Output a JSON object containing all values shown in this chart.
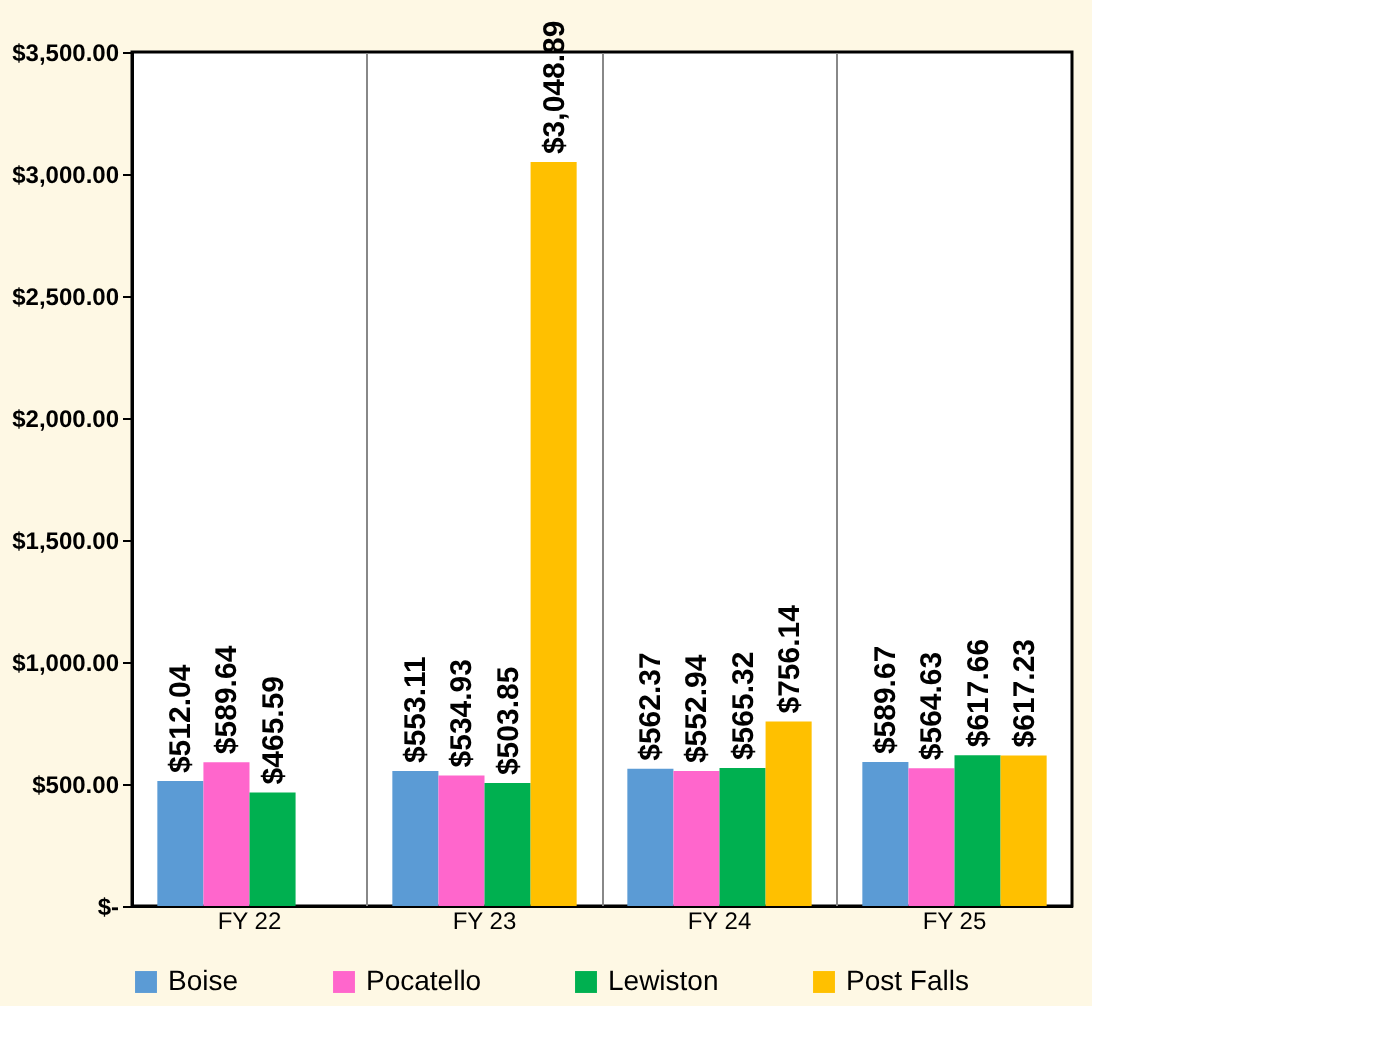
{
  "chart_data": {
    "type": "bar",
    "categories": [
      "FY 22",
      "FY 23",
      "FY 24",
      "FY 25"
    ],
    "series": [
      {
        "name": "Boise",
        "color": "#5b9bd5",
        "values": [
          512.04,
          553.11,
          562.37,
          589.67
        ],
        "value_labels": [
          "$512.04",
          "$553.11",
          "$562.37",
          "$589.67"
        ]
      },
      {
        "name": "Pocatello",
        "color": "#ff66cc",
        "values": [
          589.64,
          534.93,
          552.94,
          564.63
        ],
        "value_labels": [
          "$589.64",
          "$534.93",
          "$552.94",
          "$564.63"
        ]
      },
      {
        "name": "Lewiston",
        "color": "#00b050",
        "values": [
          465.59,
          503.85,
          565.32,
          617.66
        ],
        "value_labels": [
          "$465.59",
          "$503.85",
          "$565.32",
          "$617.66"
        ]
      },
      {
        "name": "Post Falls",
        "color": "#ffc000",
        "values": [
          null,
          3048.89,
          756.14,
          617.23
        ],
        "value_labels": [
          null,
          "$3,048.89",
          "$756.14",
          "$617.23"
        ]
      }
    ],
    "ylim": [
      0,
      3500
    ],
    "yticks": [
      {
        "value": 0,
        "label": "$-"
      },
      {
        "value": 500,
        "label": "$500.00"
      },
      {
        "value": 1000,
        "label": "$1,000.00"
      },
      {
        "value": 1500,
        "label": "$1,500.00"
      },
      {
        "value": 2000,
        "label": "$2,000.00"
      },
      {
        "value": 2500,
        "label": "$2,500.00"
      },
      {
        "value": 3000,
        "label": "$3,000.00"
      },
      {
        "value": 3500,
        "label": "$3,500.00"
      }
    ],
    "grid": "x",
    "legend": "bottom"
  }
}
